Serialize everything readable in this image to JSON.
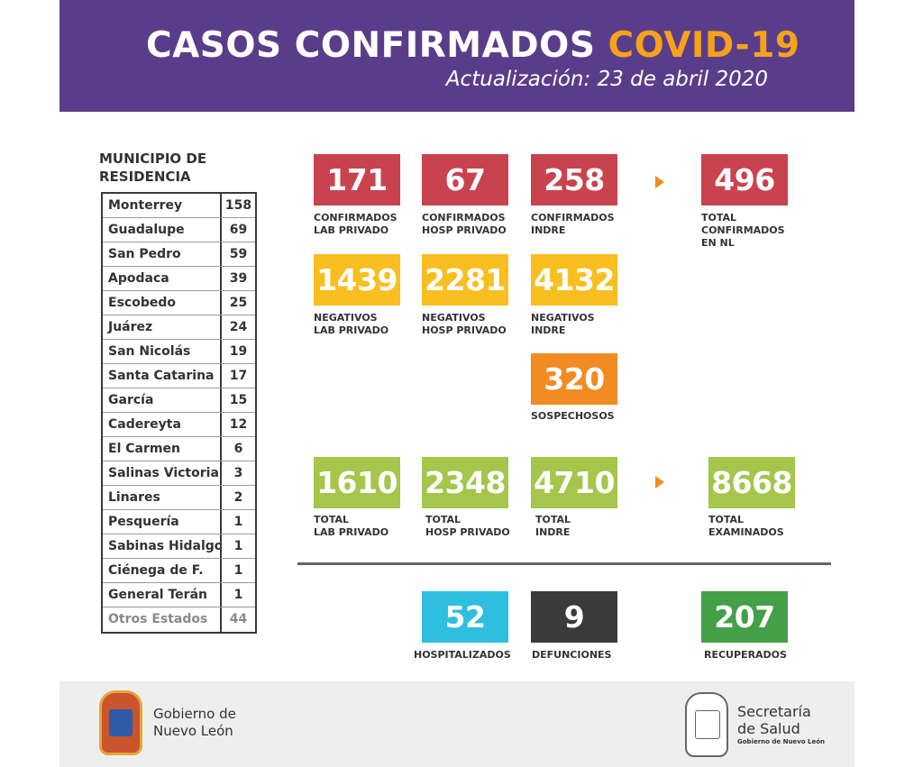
{
  "header": {
    "title_main": "CASOS CONFIRMADOS",
    "title_accent": "COVID-19",
    "subtitle": "Actualización: 23 de abril 2020"
  },
  "municipios": {
    "heading_line1": "MUNICIPIO DE",
    "heading_line2": "RESIDENCIA",
    "rows": [
      {
        "name": "Monterrey",
        "value": "158"
      },
      {
        "name": "Guadalupe",
        "value": "69"
      },
      {
        "name": "San Pedro",
        "value": "59"
      },
      {
        "name": "Apodaca",
        "value": "39"
      },
      {
        "name": "Escobedo",
        "value": "25"
      },
      {
        "name": "Juárez",
        "value": "24"
      },
      {
        "name": "San Nicolás",
        "value": "19"
      },
      {
        "name": "Santa Catarina",
        "value": "17"
      },
      {
        "name": "García",
        "value": "15"
      },
      {
        "name": "Cadereyta",
        "value": "12"
      },
      {
        "name": "El Carmen",
        "value": "6"
      },
      {
        "name": "Salinas Victoria",
        "value": "3"
      },
      {
        "name": "Linares",
        "value": "2"
      },
      {
        "name": "Pesquería",
        "value": "1"
      },
      {
        "name": "Sabinas Hidalgo",
        "value": "1"
      },
      {
        "name": "Ciénega de F.",
        "value": "1"
      },
      {
        "name": "General Terán",
        "value": "1"
      },
      {
        "name": "Otros Estados",
        "value": "44"
      }
    ]
  },
  "confirmados": {
    "lab_privado": {
      "value": "171",
      "l1": "CONFIRMADOS",
      "l2": "LAB PRIVADO"
    },
    "hosp_privado": {
      "value": "67",
      "l1": "CONFIRMADOS",
      "l2": "HOSP PRIVADO"
    },
    "indre": {
      "value": "258",
      "l1": "CONFIRMADOS",
      "l2": "INDRE"
    },
    "total": {
      "value": "496",
      "l1": "TOTAL",
      "l2": "CONFIRMADOS",
      "l3": "EN NL"
    }
  },
  "negativos": {
    "lab_privado": {
      "value": "1439",
      "l1": "NEGATIVOS",
      "l2": "LAB PRIVADO"
    },
    "hosp_privado": {
      "value": "2281",
      "l1": "NEGATIVOS",
      "l2": "HOSP PRIVADO"
    },
    "indre": {
      "value": "4132",
      "l1": "NEGATIVOS",
      "l2": "INDRE"
    }
  },
  "sospechosos": {
    "value": "320",
    "label": "SOSPECHOSOS"
  },
  "totales": {
    "lab_privado": {
      "value": "1610",
      "l1": "TOTAL",
      "l2": "LAB PRIVADO"
    },
    "hosp_privado": {
      "value": "2348",
      "l1": "TOTAL",
      "l2": "HOSP PRIVADO"
    },
    "indre": {
      "value": "4710",
      "l1": "TOTAL",
      "l2": "INDRE"
    },
    "examinados": {
      "value": "8668",
      "l1": "TOTAL",
      "l2": "EXAMINADOS"
    }
  },
  "resumen": {
    "hospitalizados": {
      "value": "52",
      "label": "HOSPITALIZADOS"
    },
    "defunciones": {
      "value": "9",
      "label": "DEFUNCIONES"
    },
    "recuperados": {
      "value": "207",
      "label": "RECUPERADOS"
    }
  },
  "footer": {
    "left_l1": "Gobierno de",
    "left_l2": "Nuevo León",
    "right_l1": "Secretaría",
    "right_l2": "de Salud",
    "right_small": "Gobierno de Nuevo León"
  },
  "colors": {
    "header_bg": "#5a3d8a",
    "accent": "#f7a21b",
    "red": "#c9434f",
    "yellow": "#f9be1f",
    "orange": "#f28b21",
    "green": "#a4c64b",
    "blue": "#2ebede",
    "dark": "#3a3a3a",
    "dark_green": "#43a047"
  },
  "icons": [
    "coat-of-arms-nuevo-leon-icon",
    "secretaria-salud-seal-icon",
    "arrow-right-icon"
  ]
}
